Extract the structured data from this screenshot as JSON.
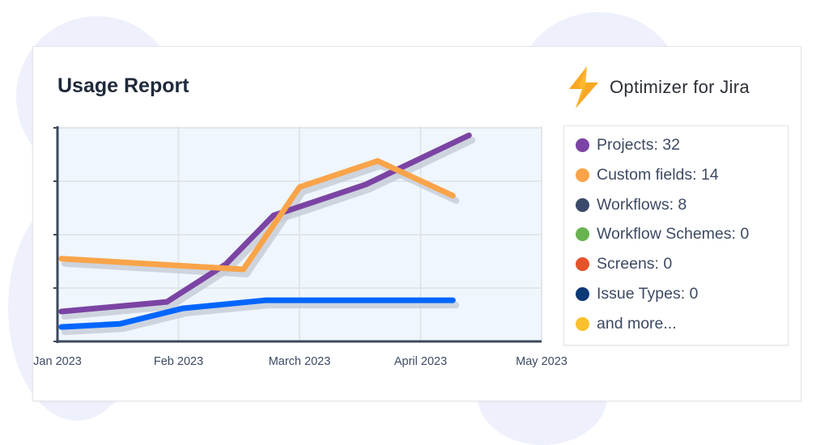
{
  "header": {
    "title": "Usage Report",
    "brand": "Optimizer for Jira",
    "brand_icon": "lightning-bolt-icon"
  },
  "legend": [
    {
      "label": "Projects: 32",
      "color": "#7b44a4"
    },
    {
      "label": "Custom fields: 14",
      "color": "#f9a449"
    },
    {
      "label": "Workflows: 8",
      "color": "#3b4a6b"
    },
    {
      "label": "Workflow Schemes: 0",
      "color": "#67b34f"
    },
    {
      "label": "Screens: 0",
      "color": "#e5532a"
    },
    {
      "label": "Issue Types: 0",
      "color": "#0b3877"
    },
    {
      "label": "and more...",
      "color": "#fbc02d"
    }
  ],
  "chart_data": {
    "type": "line",
    "x_ticks": [
      "Jan 2023",
      "Feb 2023",
      "March 2023",
      "April 2023",
      "May 2023"
    ],
    "xlim": [
      "2023-01-01",
      "2023-05-01"
    ],
    "ylim": [
      0,
      4
    ],
    "grid": true,
    "series": [
      {
        "color": "#7b44a4",
        "points": [
          [
            "2023-01-02",
            0.56
          ],
          [
            "2023-01-29",
            0.74
          ],
          [
            "2023-02-12",
            1.45
          ],
          [
            "2023-02-23",
            2.36
          ],
          [
            "2023-03-18",
            2.94
          ],
          [
            "2023-04-13",
            3.86
          ]
        ]
      },
      {
        "color": "#f9a449",
        "points": [
          [
            "2023-01-02",
            1.55
          ],
          [
            "2023-02-16",
            1.35
          ],
          [
            "2023-03-01",
            2.89
          ],
          [
            "2023-03-21",
            3.38
          ],
          [
            "2023-04-09",
            2.73
          ]
        ]
      },
      {
        "color": "#0066ff",
        "points": [
          [
            "2023-01-02",
            0.27
          ],
          [
            "2023-01-17",
            0.33
          ],
          [
            "2023-02-02",
            0.62
          ],
          [
            "2023-02-21",
            0.77
          ],
          [
            "2023-04-09",
            0.77
          ]
        ]
      }
    ]
  }
}
